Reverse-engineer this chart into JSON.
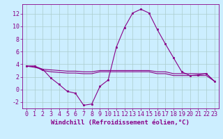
{
  "xlabel": "Windchill (Refroidissement éolien,°C)",
  "background_color": "#cceeff",
  "grid_color": "#aacccc",
  "line_color": "#880088",
  "x_ticks": [
    0,
    1,
    2,
    3,
    4,
    5,
    6,
    7,
    8,
    9,
    10,
    11,
    12,
    13,
    14,
    15,
    16,
    17,
    18,
    19,
    20,
    21,
    22,
    23
  ],
  "y_ticks": [
    -2,
    0,
    2,
    4,
    6,
    8,
    10,
    12
  ],
  "xlim": [
    -0.5,
    23.5
  ],
  "ylim": [
    -3.0,
    13.5
  ],
  "line1_x": [
    0,
    1,
    2,
    3,
    4,
    5,
    6,
    7,
    8,
    9,
    10,
    11,
    12,
    13,
    14,
    15,
    16,
    17,
    18,
    19,
    20,
    21,
    22,
    23
  ],
  "line1_y": [
    3.7,
    3.7,
    3.2,
    1.8,
    0.8,
    -0.3,
    -0.6,
    -2.5,
    -2.3,
    0.5,
    1.5,
    6.7,
    9.8,
    12.1,
    12.7,
    12.1,
    9.5,
    7.2,
    5.0,
    2.8,
    2.2,
    2.3,
    2.5,
    1.3
  ],
  "line2_x": [
    0,
    1,
    2,
    3,
    4,
    5,
    6,
    7,
    8,
    9,
    10,
    11,
    12,
    13,
    14,
    15,
    16,
    17,
    18,
    19,
    20,
    21,
    22,
    23
  ],
  "line2_y": [
    3.7,
    3.5,
    3.2,
    3.1,
    3.0,
    2.9,
    2.9,
    2.8,
    2.8,
    3.0,
    3.0,
    3.0,
    3.0,
    3.0,
    3.0,
    3.0,
    2.8,
    2.8,
    2.5,
    2.5,
    2.5,
    2.5,
    2.5,
    1.3
  ],
  "line3_x": [
    0,
    1,
    2,
    3,
    4,
    5,
    6,
    7,
    8,
    9,
    10,
    11,
    12,
    13,
    14,
    15,
    16,
    17,
    18,
    19,
    20,
    21,
    22,
    23
  ],
  "line3_y": [
    3.7,
    3.7,
    3.0,
    2.8,
    2.7,
    2.6,
    2.6,
    2.5,
    2.5,
    2.8,
    2.8,
    2.8,
    2.8,
    2.8,
    2.8,
    2.8,
    2.5,
    2.5,
    2.2,
    2.2,
    2.2,
    2.2,
    2.2,
    1.3
  ],
  "tick_fontsize": 6,
  "label_fontsize": 6.5
}
